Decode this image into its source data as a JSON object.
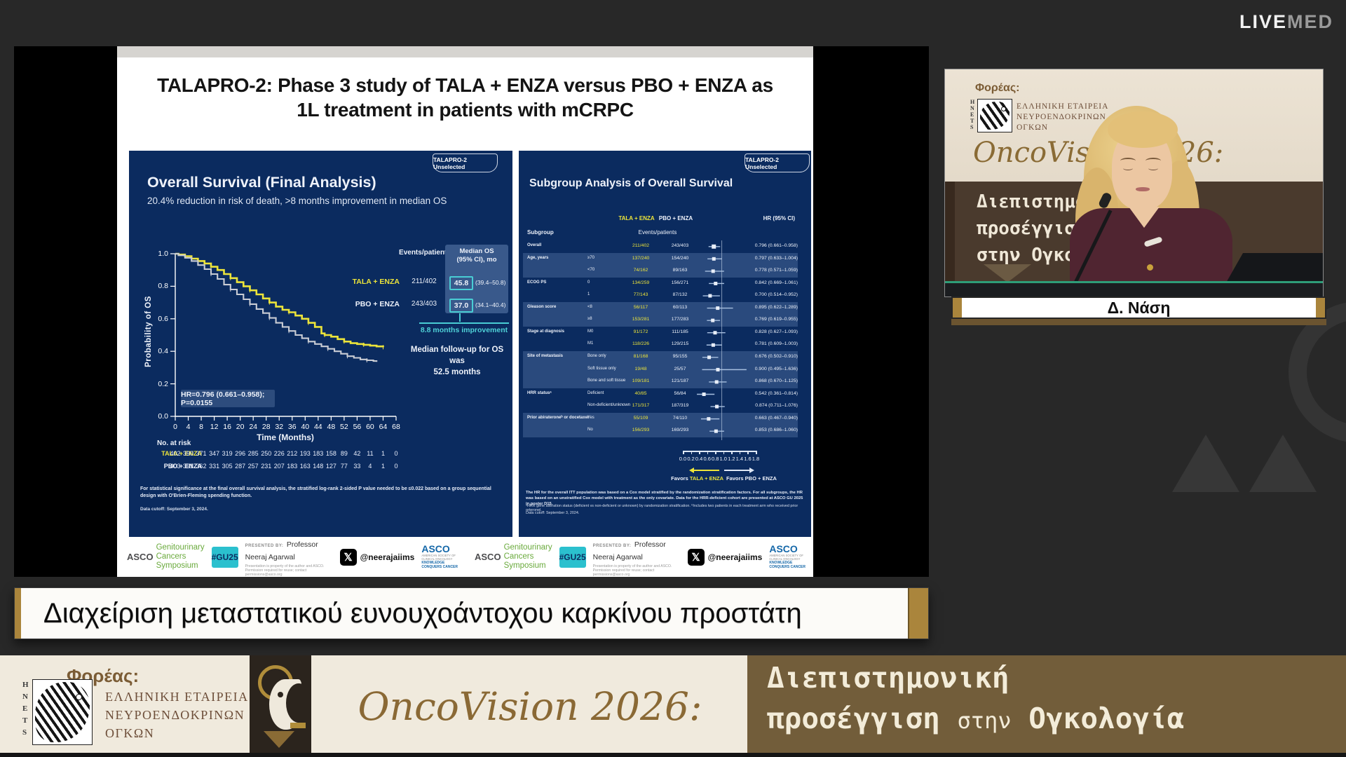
{
  "colors": {
    "panel_navy": "#0b2b5f",
    "tala_yellow": "#ece43a",
    "pbo_gray": "#c9ccd4",
    "teal_accent": "#49cdd4",
    "gu25_cyan": "#2bc0ce",
    "asco_green": "#6aaa3c",
    "asco_blue": "#1467a8",
    "gold": "#aa853c",
    "brown": "#7b5c35",
    "cream": "#f0eadd"
  },
  "livemed": {
    "live": "LIVE",
    "med": "MED"
  },
  "slide": {
    "title_line1": "TALAPRO-2: Phase 3 study of TALA + ENZA versus PBO + ENZA as",
    "title_line2": "1L treatment in patients with mCRPC",
    "left_panel": {
      "badge": "TALAPRO-2 Unselected",
      "events_header": "Events/patients",
      "median_header_line1": "Median OS",
      "median_header_line2": "(95% CI), mo",
      "improvement_label": "8.8 months improvement",
      "followup_line1": "Median follow-up for OS was",
      "followup_line2": "52.5 months",
      "hr_annotation": "HR=0.796 (0.661–0.958); P=0.0155",
      "no_at_risk_label": "No. at risk",
      "footnote": "For statistical significance at the final overall survival analysis, the stratified log-rank 2-sided P value needed to be ≤0.022 based on a group sequential design with O'Brien-Fleming spending function.",
      "data_cutoff": "Data cutoff: September 3, 2024."
    },
    "right_panel": {
      "badge": "TALAPRO-2 Unselected",
      "heading": "Subgroup Analysis of Overall Survival",
      "col_tala": "TALA + ENZA",
      "col_pbo": "PBO + ENZA",
      "col_subgroup": "Subgroup",
      "col_events": "Events/patients",
      "col_hr": "HR (95% CI)",
      "footnote1": "The HR for the overall ITT population was based on a Cox model stratified by the randomization stratification factors. For all subgroups, the HR was based on an unstratified Cox model with treatment as the only covariate. Data for the HRR-deficient cohort are presented at ASCO GU 2025 in poster D15.",
      "footnote2": "ᵃHRR gene alteration status (deficient vs non-deficient or unknown) by randomization stratification. ᵇIncludes two patients in each treatment arm who received prior orteronel.",
      "data_cutoff": "Data cutoff: September 3, 2024."
    },
    "footer": {
      "asco_word": "ASCO",
      "gu_line1": "Genitourinary",
      "gu_line2": "Cancers Symposium",
      "hashtag": "#GU25",
      "presented_label": "PRESENTED BY:",
      "presenter": "Professor Neeraj Agarwal",
      "fine_print": "Presentation is property of the author and ASCO. Permission required for reuse; contact permissions@asco.org",
      "x_handle": "@neerajaiims",
      "asco_logo_word": "ASCO",
      "asco_logo_sub": "AMERICAN SOCIETY OF CLINICAL ONCOLOGY",
      "asco_tagline": "KNOWLEDGE CONQUERS CANCER"
    }
  },
  "chart_data": [
    {
      "type": "line",
      "title": "Overall Survival (Final Analysis)",
      "subtitle": "20.4% reduction in risk of death, >8 months improvement in median OS",
      "xlabel": "Time (Months)",
      "ylabel": "Probability of OS",
      "xlim": [
        0,
        68
      ],
      "ylim": [
        0.0,
        1.0
      ],
      "xticks": [
        0,
        4,
        8,
        12,
        16,
        20,
        24,
        28,
        32,
        36,
        40,
        44,
        48,
        52,
        56,
        60,
        64,
        68
      ],
      "yticks": [
        "1.0",
        "0.8",
        "0.6",
        "0.4",
        "0.2",
        "0.0"
      ],
      "grid": false,
      "hr": 0.796,
      "hr_ci": [
        0.661,
        0.958
      ],
      "p_value": "0.0155",
      "improvement_months": 8.8,
      "median_followup_months": 52.5,
      "series": [
        {
          "name": "TALA + ENZA",
          "color": "#ece43a",
          "events_patients": "211/402",
          "median_os": "45.8",
          "median_ci": "(39.4–50.8)",
          "points": [
            [
              0,
              1.0
            ],
            [
              1,
              0.995
            ],
            [
              3,
              0.985
            ],
            [
              5,
              0.97
            ],
            [
              7,
              0.955
            ],
            [
              9,
              0.94
            ],
            [
              11,
              0.92
            ],
            [
              13,
              0.9
            ],
            [
              15,
              0.875
            ],
            [
              17,
              0.85
            ],
            [
              19,
              0.825
            ],
            [
              21,
              0.8
            ],
            [
              23,
              0.775
            ],
            [
              25,
              0.75
            ],
            [
              27,
              0.725
            ],
            [
              29,
              0.7
            ],
            [
              31,
              0.675
            ],
            [
              33,
              0.655
            ],
            [
              35,
              0.64
            ],
            [
              37,
              0.62
            ],
            [
              39,
              0.6
            ],
            [
              41,
              0.575
            ],
            [
              43,
              0.55
            ],
            [
              45,
              0.51
            ],
            [
              46,
              0.5
            ],
            [
              48,
              0.49
            ],
            [
              50,
              0.475
            ],
            [
              52,
              0.46
            ],
            [
              54,
              0.45
            ],
            [
              56,
              0.445
            ],
            [
              58,
              0.44
            ],
            [
              60,
              0.435
            ],
            [
              62,
              0.43
            ],
            [
              64,
              0.425
            ]
          ]
        },
        {
          "name": "PBO + ENZA",
          "color": "#c9ccd4",
          "events_patients": "243/403",
          "median_os": "37.0",
          "median_ci": "(34.1–40.4)",
          "points": [
            [
              0,
              1.0
            ],
            [
              1,
              0.99
            ],
            [
              3,
              0.975
            ],
            [
              5,
              0.955
            ],
            [
              7,
              0.93
            ],
            [
              9,
              0.905
            ],
            [
              11,
              0.875
            ],
            [
              13,
              0.845
            ],
            [
              15,
              0.81
            ],
            [
              17,
              0.78
            ],
            [
              19,
              0.75
            ],
            [
              21,
              0.72
            ],
            [
              23,
              0.69
            ],
            [
              25,
              0.66
            ],
            [
              27,
              0.635
            ],
            [
              29,
              0.605
            ],
            [
              31,
              0.575
            ],
            [
              33,
              0.55
            ],
            [
              35,
              0.525
            ],
            [
              37,
              0.5
            ],
            [
              39,
              0.48
            ],
            [
              41,
              0.46
            ],
            [
              43,
              0.445
            ],
            [
              45,
              0.43
            ],
            [
              47,
              0.415
            ],
            [
              49,
              0.4
            ],
            [
              51,
              0.385
            ],
            [
              53,
              0.37
            ],
            [
              55,
              0.36
            ],
            [
              57,
              0.35
            ],
            [
              59,
              0.345
            ],
            [
              61,
              0.34
            ],
            [
              62,
              0.335
            ]
          ]
        }
      ],
      "at_risk": {
        "label": "No. at risk",
        "rows": [
          {
            "name": "TALA + ENZA",
            "values": [
              402,
              390,
              371,
              347,
              319,
              296,
              285,
              250,
              226,
              212,
              193,
              183,
              158,
              89,
              42,
              11,
              1,
              0
            ]
          },
          {
            "name": "PBO + ENZA",
            "values": [
              403,
              391,
              362,
              331,
              305,
              287,
              257,
              231,
              207,
              183,
              163,
              148,
              127,
              77,
              33,
              4,
              1,
              0
            ]
          }
        ]
      }
    },
    {
      "type": "forest",
      "title": "Subgroup Analysis of Overall Survival",
      "axis_range": [
        0.0,
        1.8
      ],
      "xticks": [
        "0.0",
        "0.2",
        "0.4",
        "0.6",
        "0.8",
        "1.0",
        "1.2",
        "1.4",
        "1.6",
        "1.8"
      ],
      "reference_line": 1.0,
      "favors": {
        "word": "Favors",
        "left_arm": "TALA + ENZA",
        "right": "Favors PBO + ENZA"
      },
      "rows": [
        {
          "group": "Overall",
          "sub": "",
          "tala": "211/402",
          "pbo": "243/403",
          "hr": 0.796,
          "lo": 0.661,
          "hi": 0.958,
          "hr_text": "0.796 (0.661–0.958)",
          "shade": false
        },
        {
          "group": "Age, years",
          "sub": "≥70",
          "tala": "137/240",
          "pbo": "154/240",
          "hr": 0.797,
          "lo": 0.633,
          "hi": 1.004,
          "hr_text": "0.797 (0.633–1.004)",
          "shade": true
        },
        {
          "group": "",
          "sub": "<70",
          "tala": "74/162",
          "pbo": "89/163",
          "hr": 0.778,
          "lo": 0.571,
          "hi": 1.059,
          "hr_text": "0.778 (0.571–1.059)",
          "shade": true
        },
        {
          "group": "ECOG PS",
          "sub": "0",
          "tala": "134/259",
          "pbo": "156/271",
          "hr": 0.842,
          "lo": 0.669,
          "hi": 1.061,
          "hr_text": "0.842 (0.669–1.061)",
          "shade": false
        },
        {
          "group": "",
          "sub": "1",
          "tala": "77/143",
          "pbo": "87/132",
          "hr": 0.7,
          "lo": 0.514,
          "hi": 0.952,
          "hr_text": "0.700 (0.514–0.952)",
          "shade": false
        },
        {
          "group": "Gleason score",
          "sub": "<8",
          "tala": "56/117",
          "pbo": "60/113",
          "hr": 0.895,
          "lo": 0.622,
          "hi": 1.289,
          "hr_text": "0.895 (0.622–1.289)",
          "shade": true
        },
        {
          "group": "",
          "sub": "≥8",
          "tala": "153/281",
          "pbo": "177/283",
          "hr": 0.769,
          "lo": 0.619,
          "hi": 0.955,
          "hr_text": "0.769 (0.619–0.955)",
          "shade": true
        },
        {
          "group": "Stage at diagnosis",
          "sub": "M0",
          "tala": "91/172",
          "pbo": "111/185",
          "hr": 0.828,
          "lo": 0.627,
          "hi": 1.093,
          "hr_text": "0.828 (0.627–1.093)",
          "shade": false
        },
        {
          "group": "",
          "sub": "M1",
          "tala": "118/226",
          "pbo": "129/215",
          "hr": 0.781,
          "lo": 0.609,
          "hi": 1.003,
          "hr_text": "0.781 (0.609–1.003)",
          "shade": false
        },
        {
          "group": "Site of metastasis",
          "sub": "Bone only",
          "tala": "81/168",
          "pbo": "95/155",
          "hr": 0.676,
          "lo": 0.502,
          "hi": 0.91,
          "hr_text": "0.676 (0.502–0.910)",
          "shade": true
        },
        {
          "group": "",
          "sub": "Soft tissue only",
          "tala": "19/48",
          "pbo": "25/57",
          "hr": 0.9,
          "lo": 0.495,
          "hi": 1.636,
          "hr_text": "0.900 (0.495–1.636)",
          "shade": true
        },
        {
          "group": "",
          "sub": "Bone and soft tissue",
          "tala": "109/181",
          "pbo": "121/187",
          "hr": 0.868,
          "lo": 0.67,
          "hi": 1.125,
          "hr_text": "0.868 (0.670–1.125)",
          "shade": true
        },
        {
          "group": "HRR statusᵃ",
          "sub": "Deficient",
          "tala": "40/85",
          "pbo": "56/84",
          "hr": 0.542,
          "lo": 0.361,
          "hi": 0.814,
          "hr_text": "0.542 (0.361–0.814)",
          "shade": false
        },
        {
          "group": "",
          "sub": "Non-deficient/unknown",
          "tala": "171/317",
          "pbo": "187/319",
          "hr": 0.874,
          "lo": 0.711,
          "hi": 1.076,
          "hr_text": "0.874 (0.711–1.076)",
          "shade": false
        },
        {
          "group": "Prior abirateroneᵇ or docetaxel",
          "sub": "Yes",
          "tala": "55/109",
          "pbo": "74/110",
          "hr": 0.663,
          "lo": 0.467,
          "hi": 0.94,
          "hr_text": "0.663 (0.467–0.940)",
          "shade": true
        },
        {
          "group": "",
          "sub": "No",
          "tala": "156/293",
          "pbo": "169/293",
          "hr": 0.853,
          "lo": 0.686,
          "hi": 1.06,
          "hr_text": "0.853 (0.686–1.060)",
          "shade": true
        }
      ]
    }
  ],
  "speaker_panel": {
    "foreas_label": "Φορέας:",
    "hnets_acronym": "HNETS",
    "org_line1": "ΕΛΛΗΝΙΚΗ ΕΤΑΙΡΕΙΑ",
    "org_line2": "ΝΕΥΡΟΕΝΔΟΚΡΙΝΩΝ",
    "org_line3": "ΟΓΚΩΝ",
    "event_script": "OncoVision 2026:",
    "banner_line1": "Διεπιστημονική",
    "banner_line2": "προσέγγιση",
    "banner_line3": "στην Ογκολογία",
    "caption": "Δ. Νάση"
  },
  "lower_third": "Διαχείριση μεταστατικού ευνουχοάντοχου καρκίνου προστάτη",
  "bottom_bar": {
    "foreas_label": "Φορέας:",
    "hnets_acronym": "HNETS",
    "org_line1": "ΕΛΛΗΝΙΚΗ ΕΤΑΙΡΕΙΑ",
    "org_line2": "ΝΕΥΡΟΕΝΔΟΚΡΙΝΩΝ",
    "org_line3": "ΟΓΚΩΝ",
    "event_script": "OncoVision 2026:",
    "tagline_line1": "Διεπιστημονική",
    "tagline_bold2": "προσέγγιση",
    "tagline_thin": "στην",
    "tagline_bold3": "Ογκολογία"
  }
}
